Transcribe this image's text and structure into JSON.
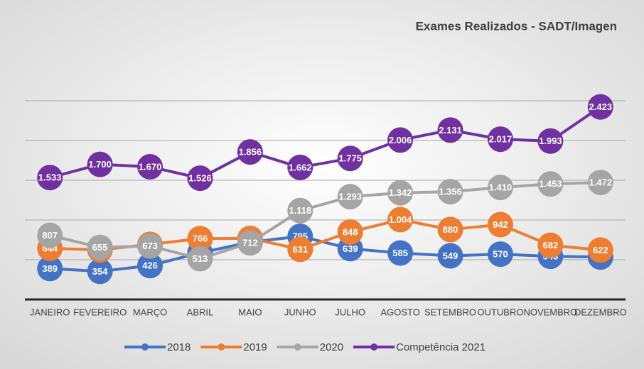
{
  "chart_data": {
    "type": "line",
    "title": "Exames Realizados - SADT/Imagen",
    "categories": [
      "JANEIRO",
      "FEVEREIRO",
      "MARÇO",
      "ABRIL",
      "MAIO",
      "JUNHO",
      "JULHO",
      "AGOSTO",
      "SETEMBRO",
      "OUTUBRO",
      "NOVEMBRO",
      "DEZEMBRO"
    ],
    "series": [
      {
        "name": "2018",
        "color": "#4472c4",
        "values": [
          389,
          354,
          426,
          586,
          721,
          795,
          639,
          585,
          549,
          570,
          543,
          534
        ],
        "value_labels": [
          "389",
          "354",
          "426",
          "586",
          "721",
          "795",
          "639",
          "585",
          "549",
          "570",
          "543",
          "534"
        ]
      },
      {
        "name": "2019",
        "color": "#ed7d31",
        "values": [
          644,
          624,
          693,
          766,
          769,
          631,
          848,
          1004,
          880,
          942,
          682,
          622
        ],
        "value_labels": [
          "644",
          "624",
          "693",
          "766",
          "769",
          "631",
          "848",
          "1.004",
          "880",
          "942",
          "682",
          "622"
        ]
      },
      {
        "name": "2020",
        "color": "#a5a5a5",
        "values": [
          807,
          655,
          673,
          513,
          712,
          1118,
          1293,
          1342,
          1356,
          1410,
          1453,
          1472
        ],
        "value_labels": [
          "807",
          "655",
          "673",
          "513",
          "712",
          "1.118",
          "1.293",
          "1.342",
          "1.356",
          "1.410",
          "1.453",
          "1.472"
        ]
      },
      {
        "name": "Competência 2021",
        "color": "#7030a0",
        "values": [
          1533,
          1700,
          1670,
          1526,
          1856,
          1662,
          1775,
          2006,
          2131,
          2017,
          1993,
          2423
        ],
        "value_labels": [
          "1.533",
          "1.700",
          "1.670",
          "1.526",
          "1.856",
          "1.662",
          "1.775",
          "2.006",
          "2.131",
          "2.017",
          "1.993",
          "2.423"
        ]
      }
    ],
    "ylim": [
      0,
      2500
    ],
    "yticks": [
      0,
      500,
      1000,
      1500,
      2000,
      2500
    ],
    "grid": true,
    "legend": "bottom"
  }
}
